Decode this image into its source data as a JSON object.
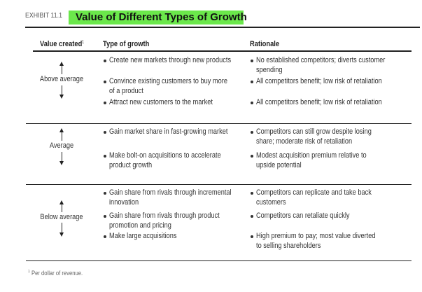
{
  "exhibit_label": "EXHIBIT 11.1",
  "title": "Value of Different Types of Growth",
  "highlight_color": "#6be84b",
  "headers": {
    "value_created": "Value created",
    "footnote_mark": "1",
    "type_of_growth": "Type of growth",
    "rationale": "Rationale"
  },
  "sections": [
    {
      "label": "Above average",
      "types": [
        [
          "Create new markets through new products"
        ],
        [
          "Convince existing customers to buy more",
          "of a product"
        ],
        [
          "Attract new customers to the market"
        ]
      ],
      "rationales": [
        [
          "No established competitors; diverts customer",
          "spending"
        ],
        [
          "All competitors benefit; low risk of retaliation"
        ],
        [
          "All competitors benefit; low risk of retaliation"
        ]
      ]
    },
    {
      "label": "Average",
      "types": [
        [
          "Gain market share in fast-growing market"
        ],
        [
          "Make bolt-on acquisitions to accelerate",
          "product growth"
        ]
      ],
      "rationales": [
        [
          "Competitors can still grow despite losing",
          "share; moderate risk of retaliation"
        ],
        [
          "Modest acquisition premium relative to",
          "upside potential"
        ]
      ]
    },
    {
      "label": "Below average",
      "types": [
        [
          "Gain share from rivals through incremental",
          "innovation"
        ],
        [
          "Gain share from rivals through product",
          "promotion and pricing"
        ],
        [
          "Make large acquisitions"
        ]
      ],
      "rationales": [
        [
          "Competitors can replicate and take back",
          "customers"
        ],
        [
          "Competitors can retaliate quickly"
        ],
        [
          "High premium to pay; most value diverted",
          "to selling shareholders"
        ]
      ]
    }
  ],
  "footnote": {
    "mark": "1",
    "text": "Per dollar of revenue."
  }
}
